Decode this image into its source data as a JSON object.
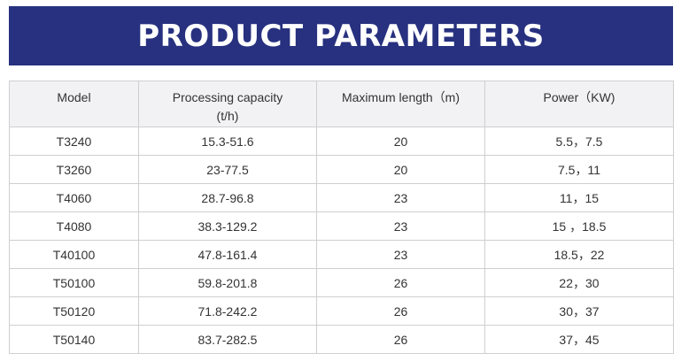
{
  "banner": {
    "title": "PRODUCT PARAMETERS",
    "background_color": "#27317f",
    "text_color": "#ffffff"
  },
  "table": {
    "header_background": "#f2f2f4",
    "border_color": "#cfcfcf",
    "headers": {
      "model": "Model",
      "capacity": "Processing capacity (t/h)",
      "length": "Maximum length（m)",
      "power": "Power（KW)"
    },
    "rows": [
      {
        "model": "T3240",
        "capacity": "15.3-51.6",
        "length": "20",
        "power": "5.5，7.5"
      },
      {
        "model": "T3260",
        "capacity": "23-77.5",
        "length": "20",
        "power": "7.5，11"
      },
      {
        "model": "T4060",
        "capacity": "28.7-96.8",
        "length": "23",
        "power": "11，15"
      },
      {
        "model": "T4080",
        "capacity": "38.3-129.2",
        "length": "23",
        "power": "15 ，18.5"
      },
      {
        "model": "T40100",
        "capacity": "47.8-161.4",
        "length": "23",
        "power": "18.5，22"
      },
      {
        "model": "T50100",
        "capacity": "59.8-201.8",
        "length": "26",
        "power": "22，30"
      },
      {
        "model": "T50120",
        "capacity": "71.8-242.2",
        "length": "26",
        "power": "30，37"
      },
      {
        "model": "T50140",
        "capacity": "83.7-282.5",
        "length": "26",
        "power": "37，45"
      }
    ]
  }
}
